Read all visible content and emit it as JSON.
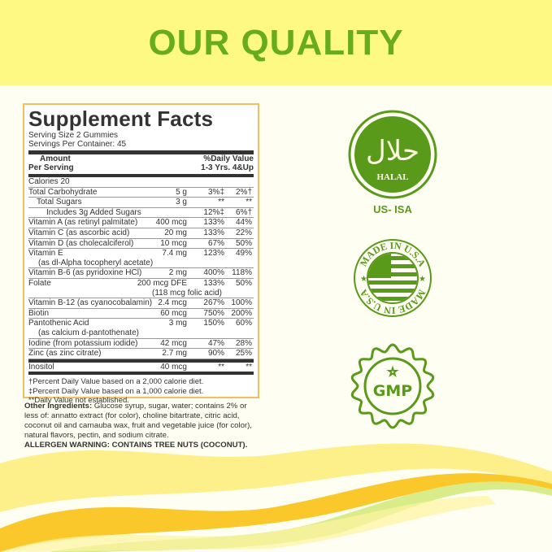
{
  "header": {
    "title": "OUR QUALITY"
  },
  "colors": {
    "green": "#67ac1c",
    "badge_green": "#5a9a1a",
    "top_band": "#fef982",
    "panel_border": "#f0c060"
  },
  "facts": {
    "title": "Supplement Facts",
    "serving_size": "Serving Size 2 Gummies",
    "servings_per_container": "Servings Per Container: 45",
    "col_amount": [
      "Amount",
      "Per Serving"
    ],
    "col_dv": [
      "%Daily Value",
      "1-3 Yrs. 4&Up"
    ],
    "calories": "Calories  20",
    "rows": [
      {
        "name": "Total Carbohydrate",
        "amount": "5 g",
        "dv1": "3%‡",
        "dv2": "2%†",
        "indent": 0
      },
      {
        "name": "Total Sugars",
        "amount": "3 g",
        "dv1": "**",
        "dv2": "**",
        "indent": 1
      },
      {
        "name": "Includes 3g Added Sugars",
        "amount": "",
        "dv1": "12%‡",
        "dv2": "6%†",
        "indent": 2
      },
      {
        "name": "Vitamin A (as retinyl palmitate)",
        "amount": "400 mcg",
        "dv1": "133%",
        "dv2": "44%"
      },
      {
        "name": "Vitamin C (as ascorbic acid)",
        "amount": "20 mg",
        "dv1": "133%",
        "dv2": "22%"
      },
      {
        "name": "Vitamin D (as cholecalciferol)",
        "amount": "10 mcg",
        "dv1": "67%",
        "dv2": "50%"
      },
      {
        "name": "Vitamin E",
        "sub": "(as dl-Alpha tocopheryl acetate)",
        "amount": "7.4 mg",
        "dv1": "123%",
        "dv2": "49%"
      },
      {
        "name": "Vitamin B-6 (as pyridoxine HCl)",
        "amount": "2 mg",
        "dv1": "400%",
        "dv2": "118%"
      },
      {
        "name": "Folate",
        "amount": "200 mcg DFE",
        "amount_sub": "(118 mcg folic acid)",
        "dv1": "133%",
        "dv2": "50%"
      },
      {
        "name": "Vitamin B-12 (as cyanocobalamin)",
        "amount": "2.4 mcg",
        "dv1": "267%",
        "dv2": "100%"
      },
      {
        "name": "Biotin",
        "amount": "60 mcg",
        "dv1": "750%",
        "dv2": "200%"
      },
      {
        "name": "Pantothenic Acid",
        "sub": "(as calcium d-pantothenate)",
        "amount": "3 mg",
        "dv1": "150%",
        "dv2": "60%"
      },
      {
        "name": "Iodine (from potassium iodide)",
        "amount": "42 mcg",
        "dv1": "47%",
        "dv2": "28%"
      },
      {
        "name": "Zinc (as zinc citrate)",
        "amount": "2.7 mg",
        "dv1": "90%",
        "dv2": "25%"
      }
    ],
    "inositol": {
      "name": "Inositol",
      "amount": "40 mcg",
      "dv1": "**",
      "dv2": "**"
    },
    "footnotes": [
      "†Percent Daily Value based on a 2,000 calorie diet.",
      "‡Percent Daily Value based on a 1,000 calorie diet.",
      "**Daily Value not established."
    ]
  },
  "ingredients": {
    "label": "Other ingredients:",
    "text": " Glucose syrup, sugar, water; contains 2% or less of: annatto extract (for color), choline bitartrate, citric acid, coconut oil and carnauba wax, fruit and vegetable juice (for color), natural flavors, pectin, and sodium citrate.",
    "allergen": "ALLERGEN WARNING: CONTAINS TREE NUTS (COCONUT)."
  },
  "badges": {
    "halal": {
      "arabic": "حلال",
      "text": "HALAL",
      "caption": "US- ISA",
      "icon": "halal-seal"
    },
    "usa": {
      "text": "MADE IN U.S.A",
      "icon": "usa-flag-seal"
    },
    "gmp": {
      "text": "GMP",
      "icon": "gmp-star-seal"
    }
  }
}
